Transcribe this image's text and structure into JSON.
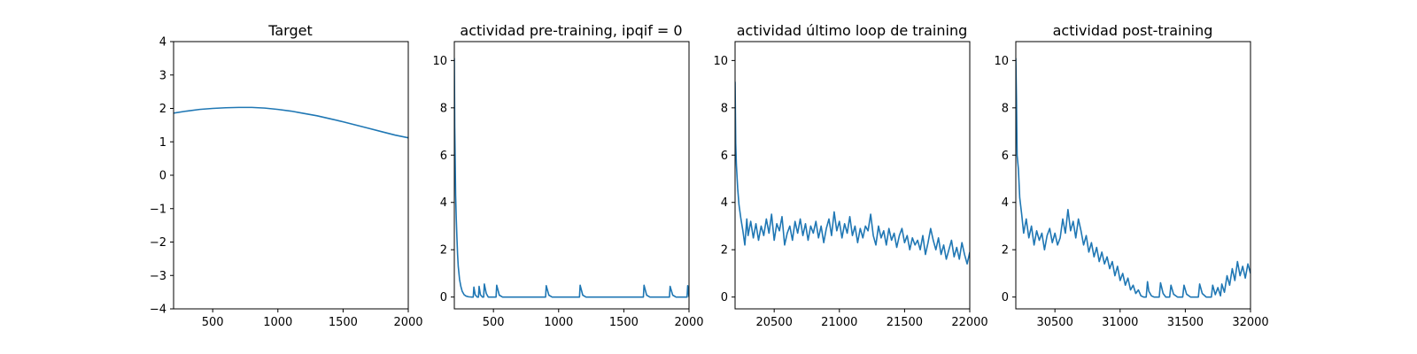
{
  "chart_data": [
    {
      "type": "line",
      "title": "Target",
      "xlim": [
        200,
        2000
      ],
      "ylim": [
        -4,
        4
      ],
      "xticks": [
        500,
        1000,
        1500,
        2000
      ],
      "yticks": [
        -4,
        -3,
        -2,
        -1,
        0,
        1,
        2,
        3,
        4
      ],
      "line_color": "#1f77b4",
      "series": [
        {
          "x": [
            200,
            300,
            400,
            500,
            600,
            700,
            750,
            800,
            900,
            1000,
            1100,
            1200,
            1300,
            1400,
            1500,
            1600,
            1700,
            1800,
            1900,
            2000
          ],
          "y": [
            1.86,
            1.92,
            1.97,
            2.0,
            2.02,
            2.03,
            2.03,
            2.03,
            2.01,
            1.97,
            1.92,
            1.85,
            1.78,
            1.69,
            1.6,
            1.5,
            1.4,
            1.3,
            1.2,
            1.12
          ]
        }
      ]
    },
    {
      "type": "line",
      "title": "actividad pre-training, ipqif = 0",
      "xlim": [
        200,
        2000
      ],
      "ylim": [
        -0.5,
        10.8
      ],
      "xticks": [
        500,
        1000,
        1500,
        2000
      ],
      "yticks": [
        0,
        2,
        4,
        6,
        8,
        10
      ],
      "line_color": "#1f77b4",
      "series": [
        {
          "x": [
            200,
            203,
            206,
            210,
            215,
            220,
            225,
            230,
            240,
            250,
            260,
            275,
            290,
            310,
            330,
            345,
            350,
            360,
            375,
            385,
            390,
            400,
            415,
            425,
            430,
            445,
            460,
            520,
            525,
            545,
            570,
            900,
            905,
            925,
            950,
            1160,
            1165,
            1185,
            1210,
            1650,
            1655,
            1675,
            1700,
            1850,
            1855,
            1875,
            1900,
            1985,
            1990,
            2000
          ],
          "y": [
            10.1,
            7.2,
            6.0,
            4.3,
            3.3,
            2.5,
            1.8,
            1.3,
            0.75,
            0.45,
            0.25,
            0.1,
            0.04,
            0.01,
            0.0,
            0.0,
            0.42,
            0.1,
            0.0,
            0.0,
            0.45,
            0.1,
            0.0,
            0.0,
            0.55,
            0.15,
            0.0,
            0.0,
            0.5,
            0.08,
            0.0,
            0.0,
            0.48,
            0.08,
            0.0,
            0.0,
            0.5,
            0.08,
            0.0,
            0.0,
            0.5,
            0.08,
            0.0,
            0.0,
            0.45,
            0.08,
            0.0,
            0.0,
            0.48,
            0.0
          ]
        }
      ]
    },
    {
      "type": "line",
      "title": "actividad último loop de training",
      "xlim": [
        20200,
        22000
      ],
      "ylim": [
        -0.5,
        10.8
      ],
      "xticks": [
        20500,
        21000,
        21500,
        22000
      ],
      "yticks": [
        0,
        2,
        4,
        6,
        8,
        10
      ],
      "line_color": "#1f77b4",
      "series": [
        {
          "x": [
            20200,
            20205,
            20210,
            20220,
            20230,
            20245,
            20260,
            20275,
            20290,
            20300,
            20320,
            20340,
            20360,
            20380,
            20400,
            20420,
            20440,
            20460,
            20480,
            20500,
            20520,
            20540,
            20560,
            20580,
            20600,
            20620,
            20640,
            20660,
            20680,
            20700,
            20720,
            20740,
            20760,
            20780,
            20800,
            20820,
            20840,
            20860,
            20880,
            20900,
            20920,
            20940,
            20960,
            20980,
            21000,
            21020,
            21040,
            21060,
            21080,
            21100,
            21120,
            21140,
            21160,
            21180,
            21200,
            21220,
            21240,
            21260,
            21280,
            21300,
            21320,
            21340,
            21360,
            21380,
            21400,
            21420,
            21440,
            21460,
            21480,
            21500,
            21520,
            21540,
            21560,
            21580,
            21600,
            21620,
            21640,
            21660,
            21680,
            21700,
            21720,
            21740,
            21760,
            21780,
            21800,
            21820,
            21840,
            21860,
            21880,
            21900,
            21920,
            21940,
            21960,
            21980,
            22000
          ],
          "y": [
            9.1,
            6.5,
            5.6,
            4.6,
            3.9,
            3.3,
            2.8,
            2.2,
            3.3,
            2.6,
            3.2,
            2.5,
            3.1,
            2.4,
            3.0,
            2.6,
            3.3,
            2.7,
            3.5,
            2.4,
            3.1,
            2.8,
            3.4,
            2.2,
            2.7,
            3.0,
            2.4,
            3.2,
            2.7,
            3.3,
            2.6,
            3.1,
            2.4,
            3.0,
            2.7,
            3.2,
            2.5,
            3.0,
            2.3,
            2.9,
            3.3,
            2.6,
            3.6,
            2.8,
            3.2,
            2.5,
            3.1,
            2.7,
            3.4,
            2.6,
            3.0,
            2.3,
            2.9,
            2.5,
            3.0,
            2.8,
            3.5,
            2.6,
            2.2,
            3.0,
            2.5,
            2.8,
            2.2,
            2.9,
            2.4,
            2.7,
            2.1,
            2.6,
            2.9,
            2.3,
            2.6,
            2.0,
            2.5,
            2.2,
            2.4,
            2.0,
            2.6,
            1.8,
            2.3,
            2.9,
            2.4,
            2.0,
            2.5,
            1.8,
            2.2,
            1.6,
            2.0,
            2.4,
            1.7,
            2.1,
            1.6,
            2.3,
            1.8,
            1.4,
            1.9
          ]
        }
      ]
    },
    {
      "type": "line",
      "title": "actividad post-training",
      "xlim": [
        30200,
        32000
      ],
      "ylim": [
        -0.5,
        10.8
      ],
      "xticks": [
        30500,
        31000,
        31500,
        32000
      ],
      "yticks": [
        0,
        2,
        4,
        6,
        8,
        10
      ],
      "line_color": "#1f77b4",
      "series": [
        {
          "x": [
            30200,
            30205,
            30210,
            30220,
            30230,
            30245,
            30260,
            30280,
            30300,
            30320,
            30340,
            30360,
            30380,
            30400,
            30420,
            30440,
            30460,
            30480,
            30500,
            30520,
            30540,
            30560,
            30580,
            30600,
            30620,
            30640,
            30660,
            30680,
            30700,
            30720,
            30740,
            30760,
            30780,
            30800,
            30820,
            30840,
            30860,
            30880,
            30900,
            30920,
            30940,
            30960,
            30980,
            31000,
            31020,
            31040,
            31060,
            31080,
            31100,
            31120,
            31140,
            31160,
            31180,
            31200,
            31210,
            31220,
            31240,
            31260,
            31280,
            31300,
            31310,
            31330,
            31350,
            31380,
            31390,
            31410,
            31440,
            31480,
            31490,
            31510,
            31540,
            31600,
            31610,
            31630,
            31660,
            31700,
            31710,
            31730,
            31750,
            31770,
            31780,
            31800,
            31820,
            31840,
            31860,
            31880,
            31900,
            31920,
            31940,
            31960,
            31980,
            32000
          ],
          "y": [
            10.1,
            8.4,
            6.0,
            5.4,
            4.2,
            3.5,
            2.7,
            3.3,
            2.5,
            3.0,
            2.2,
            2.8,
            2.4,
            2.7,
            2.0,
            2.6,
            2.9,
            2.3,
            2.7,
            2.2,
            2.5,
            3.3,
            2.7,
            3.7,
            2.8,
            3.2,
            2.5,
            3.3,
            2.8,
            2.2,
            2.6,
            1.9,
            2.3,
            1.7,
            2.1,
            1.5,
            1.9,
            1.4,
            1.7,
            1.2,
            1.5,
            0.9,
            1.3,
            0.7,
            1.0,
            0.5,
            0.8,
            0.3,
            0.5,
            0.15,
            0.3,
            0.05,
            0.0,
            0.0,
            0.65,
            0.25,
            0.05,
            0.0,
            0.0,
            0.0,
            0.6,
            0.15,
            0.0,
            0.0,
            0.5,
            0.12,
            0.0,
            0.0,
            0.5,
            0.12,
            0.0,
            0.0,
            0.55,
            0.15,
            0.0,
            0.0,
            0.5,
            0.1,
            0.4,
            0.05,
            0.55,
            0.2,
            0.9,
            0.5,
            1.2,
            0.7,
            1.5,
            0.9,
            1.3,
            0.8,
            1.4,
            1.0
          ]
        }
      ]
    }
  ]
}
